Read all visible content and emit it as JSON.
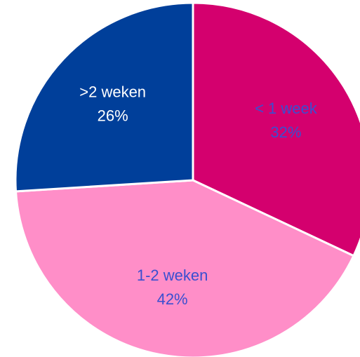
{
  "chart_data": {
    "type": "pie",
    "categories": [
      "< 1 week",
      "1-2 weken",
      ">2 weken"
    ],
    "values": [
      32,
      42,
      26
    ],
    "value_labels": [
      "32%",
      "42%",
      "26%"
    ],
    "colors": [
      "#d4006e",
      "#ff8ec8",
      "#003f9a"
    ],
    "label_colors": [
      "#3a4fd0",
      "#3a4fd0",
      "#ffffff"
    ]
  }
}
